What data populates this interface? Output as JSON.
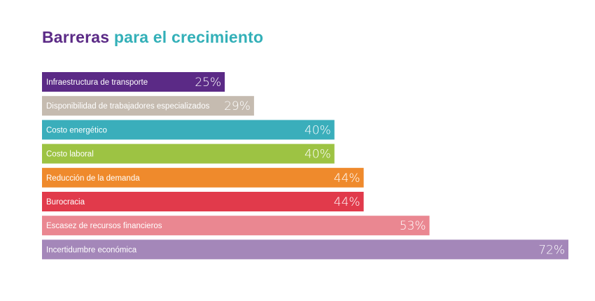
{
  "title_part1": "Barreras",
  "title_part2": "para el crecimiento",
  "colors": {
    "title_primary": "#5b2a86",
    "title_secondary": "#33b0b8"
  },
  "chart_data": {
    "type": "bar",
    "orientation": "horizontal",
    "title": "Barreras para el crecimiento",
    "categories": [
      "Infraestructura de transporte",
      "Disponibilidad de trabajadores especializados",
      "Costo energético",
      "Costo laboral",
      "Reducción de la demanda",
      "Burocracia",
      "Escasez de recursos financieros",
      "Incertidumbre económica"
    ],
    "values": [
      25,
      29,
      40,
      40,
      44,
      44,
      53,
      72
    ],
    "value_labels": [
      "25%",
      "29%",
      "40%",
      "40%",
      "44%",
      "44%",
      "53%",
      "72%"
    ],
    "bar_colors": [
      "#5b2a86",
      "#c5bbb0",
      "#3aaebb",
      "#9dc343",
      "#ef8a2c",
      "#e13a4b",
      "#ea8791",
      "#a487b9"
    ],
    "xlim": [
      0,
      72
    ],
    "grid": false,
    "legend": "none"
  }
}
